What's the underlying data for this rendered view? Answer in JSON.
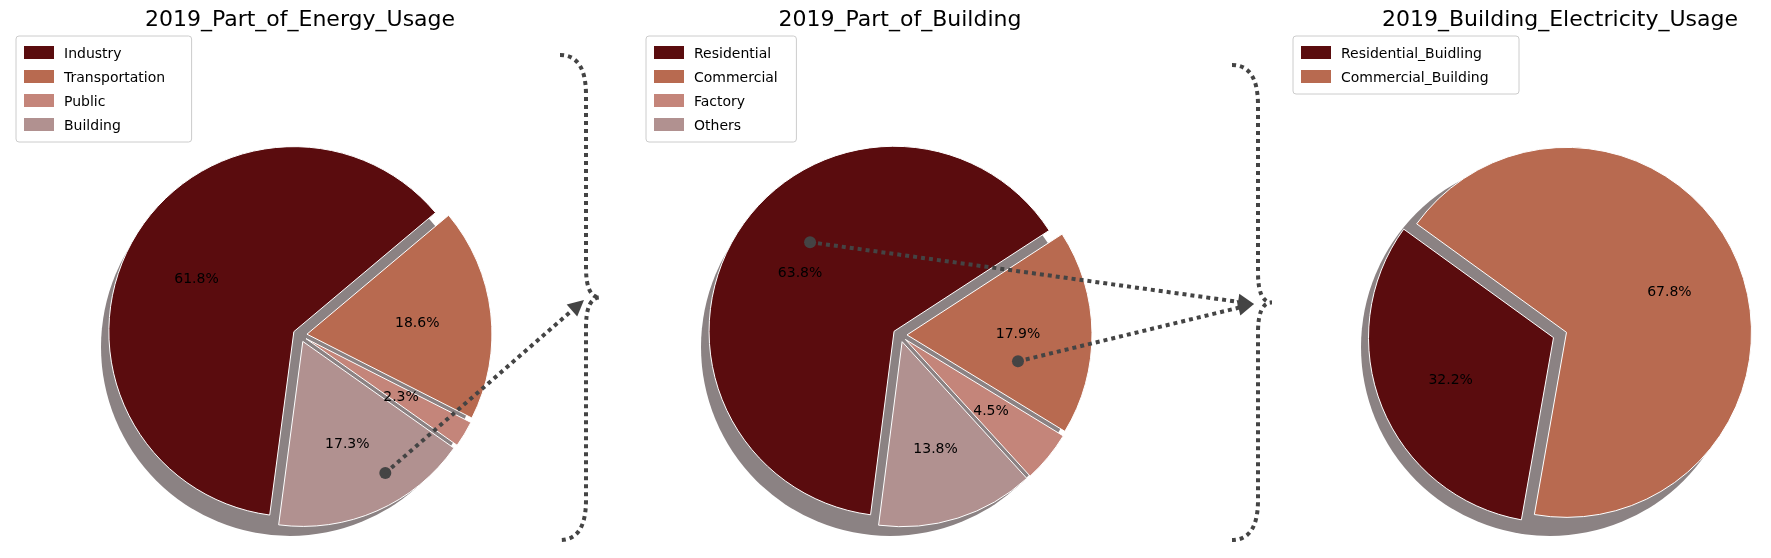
{
  "chart_data": [
    {
      "type": "pie",
      "title": "2019_Part_of_Energy_Usage",
      "categories": [
        "Industry",
        "Transportation",
        "Public",
        "Building"
      ],
      "values": [
        61.8,
        18.6,
        2.3,
        17.3
      ],
      "colors": [
        "#5a0c0e",
        "#b86a50",
        "#c4857a",
        "#b19190"
      ],
      "value_labels": [
        "61.8%",
        "18.6%",
        "2.3%",
        "17.3%"
      ],
      "legend": "top left"
    },
    {
      "type": "pie",
      "title": "2019_Part_of_Building",
      "categories": [
        "Residential",
        "Commercial",
        "Factory",
        "Others"
      ],
      "values": [
        63.8,
        17.9,
        4.5,
        13.8
      ],
      "colors": [
        "#5a0c0e",
        "#b86a50",
        "#c4857a",
        "#b19190"
      ],
      "value_labels": [
        "63.8%",
        "17.9%",
        "4.5%",
        "13.8%"
      ],
      "legend": "top left"
    },
    {
      "type": "pie",
      "title": "2019_Building_Electricity_Usage",
      "categories": [
        "Residential_Buidling",
        "Commercial_Building"
      ],
      "values": [
        32.2,
        67.8
      ],
      "colors": [
        "#5a0c0e",
        "#b86a50"
      ],
      "value_labels": [
        "32.2%",
        "67.8%"
      ],
      "legend": "top left"
    }
  ]
}
